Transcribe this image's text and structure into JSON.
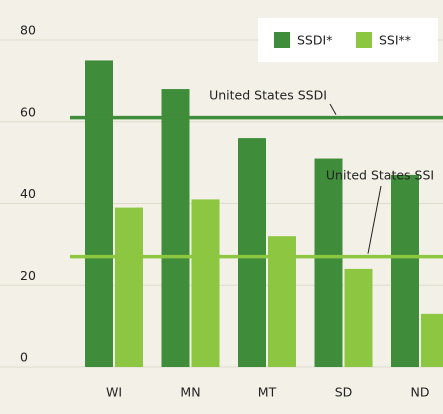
{
  "chart_data": {
    "type": "bar",
    "categories": [
      "WI",
      "MN",
      "MT",
      "SD",
      "ND"
    ],
    "series": [
      {
        "name": "SSDI*",
        "color": "#3f8c3a",
        "values": [
          75,
          68,
          56,
          51,
          47
        ]
      },
      {
        "name": "SSI**",
        "color": "#8dc641",
        "values": [
          39,
          41,
          32,
          24,
          13
        ]
      }
    ],
    "reference_lines": [
      {
        "label": "United States SSDI",
        "value": 61,
        "color": "#3f8c3a"
      },
      {
        "label": "United States SSI",
        "value": 27,
        "color": "#8dc641"
      }
    ],
    "ylim": [
      0,
      80
    ],
    "yticks": [
      0,
      20,
      40,
      60,
      80
    ],
    "grid": true,
    "legend": "top-right"
  }
}
